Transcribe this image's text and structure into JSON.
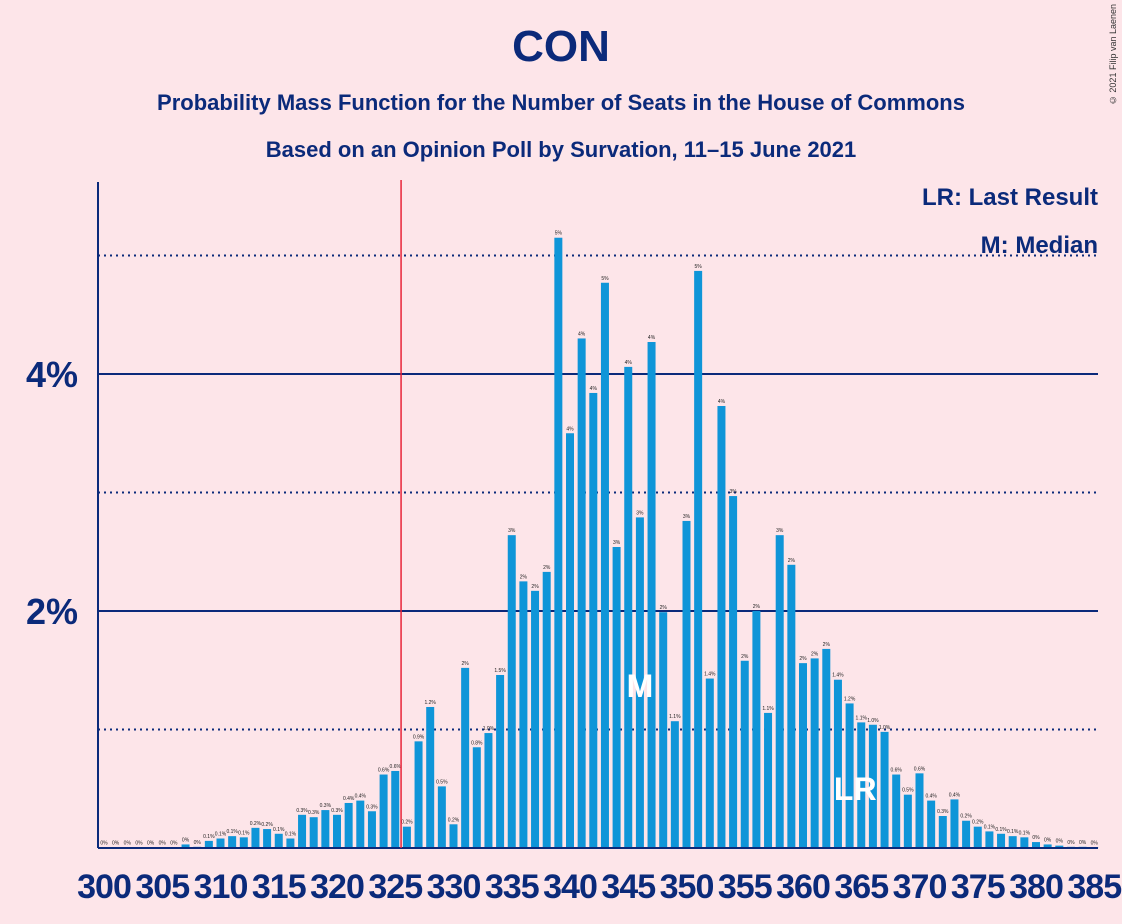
{
  "title": "CON",
  "subtitle1": "Probability Mass Function for the Number of Seats in the House of Commons",
  "subtitle2": "Based on an Opinion Poll by Survation, 11–15 June 2021",
  "copyright": "© 2021 Filip van Laenen",
  "legend": {
    "lr": "LR: Last Result",
    "median": "M: Median"
  },
  "markers": {
    "median_label": "M",
    "median_seat": 346,
    "lr_label": "LR",
    "lr_seat": 365,
    "threshold_seat": 325.5
  },
  "colors": {
    "bar": "#0f95d8",
    "axis": "#0b2a7a",
    "threshold": "#e8253a",
    "background": "#fde5e9"
  },
  "chart_data": {
    "type": "bar",
    "x": [
      300,
      301,
      302,
      303,
      304,
      305,
      306,
      307,
      308,
      309,
      310,
      311,
      312,
      313,
      314,
      315,
      316,
      317,
      318,
      319,
      320,
      321,
      322,
      323,
      324,
      325,
      326,
      327,
      328,
      329,
      330,
      331,
      332,
      333,
      334,
      335,
      336,
      337,
      338,
      339,
      340,
      341,
      342,
      343,
      344,
      345,
      346,
      347,
      348,
      349,
      350,
      351,
      352,
      353,
      354,
      355,
      356,
      357,
      358,
      359,
      360,
      361,
      362,
      363,
      364,
      365,
      366,
      367,
      368,
      369,
      370,
      371,
      372,
      373,
      374,
      375,
      376,
      377,
      378,
      379,
      380,
      381,
      382,
      383,
      384,
      385
    ],
    "values": [
      0.005,
      0.005,
      0.005,
      0.005,
      0.005,
      0.005,
      0.005,
      0.03,
      0.01,
      0.06,
      0.08,
      0.1,
      0.09,
      0.17,
      0.16,
      0.12,
      0.08,
      0.28,
      0.26,
      0.32,
      0.28,
      0.38,
      0.4,
      0.31,
      0.62,
      0.65,
      0.18,
      0.9,
      1.19,
      0.52,
      0.2,
      1.52,
      0.85,
      0.97,
      1.46,
      2.64,
      2.25,
      2.17,
      2.33,
      5.15,
      3.5,
      4.3,
      3.84,
      4.77,
      2.54,
      4.06,
      2.79,
      4.27,
      1.99,
      1.07,
      2.76,
      4.87,
      1.43,
      3.73,
      2.97,
      1.58,
      2.0,
      1.14,
      2.64,
      2.39,
      1.56,
      1.6,
      1.68,
      1.42,
      1.22,
      1.06,
      1.04,
      0.98,
      0.62,
      0.45,
      0.63,
      0.4,
      0.27,
      0.41,
      0.23,
      0.18,
      0.14,
      0.12,
      0.1,
      0.09,
      0.05,
      0.03,
      0.02,
      0.01,
      0.01,
      0.005
    ],
    "value_labels": [
      "0%",
      "0%",
      "0%",
      "0%",
      "0%",
      "0%",
      "0%",
      "0%",
      "0%",
      "0.1%",
      "0.1%",
      "0.1%",
      "0.1%",
      "0.2%",
      "0.2%",
      "0.1%",
      "0.1%",
      "0.3%",
      "0.3%",
      "0.3%",
      "0.3%",
      "0.4%",
      "0.4%",
      "0.3%",
      "0.6%",
      "0.6%",
      "0.2%",
      "0.9%",
      "1.2%",
      "0.5%",
      "0.2%",
      "2%",
      "0.8%",
      "1.0%",
      "1.5%",
      "3%",
      "2%",
      "2%",
      "2%",
      "5%",
      "4%",
      "4%",
      "4%",
      "5%",
      "3%",
      "4%",
      "3%",
      "4%",
      "2%",
      "1.1%",
      "3%",
      "5%",
      "1.4%",
      "4%",
      "3%",
      "2%",
      "2%",
      "1.1%",
      "3%",
      "2%",
      "2%",
      "2%",
      "2%",
      "1.4%",
      "1.2%",
      "1.1%",
      "1.0%",
      "1.0%",
      "0.6%",
      "0.5%",
      "0.6%",
      "0.4%",
      "0.3%",
      "0.4%",
      "0.2%",
      "0.2%",
      "0.1%",
      "0.1%",
      "0.1%",
      "0.1%",
      "0%",
      "0%",
      "0%",
      "0%",
      "0%",
      "0%"
    ],
    "x_ticks": [
      300,
      305,
      310,
      315,
      320,
      325,
      330,
      335,
      340,
      345,
      350,
      355,
      360,
      365,
      370,
      375,
      380,
      385
    ],
    "y_ticks_major": [
      2,
      4
    ],
    "y_tick_labels": [
      "2%",
      "4%"
    ],
    "y_ticks_minor": [
      1,
      3,
      5
    ],
    "ylim": [
      0,
      5.6
    ],
    "xlim": [
      300,
      385
    ]
  }
}
